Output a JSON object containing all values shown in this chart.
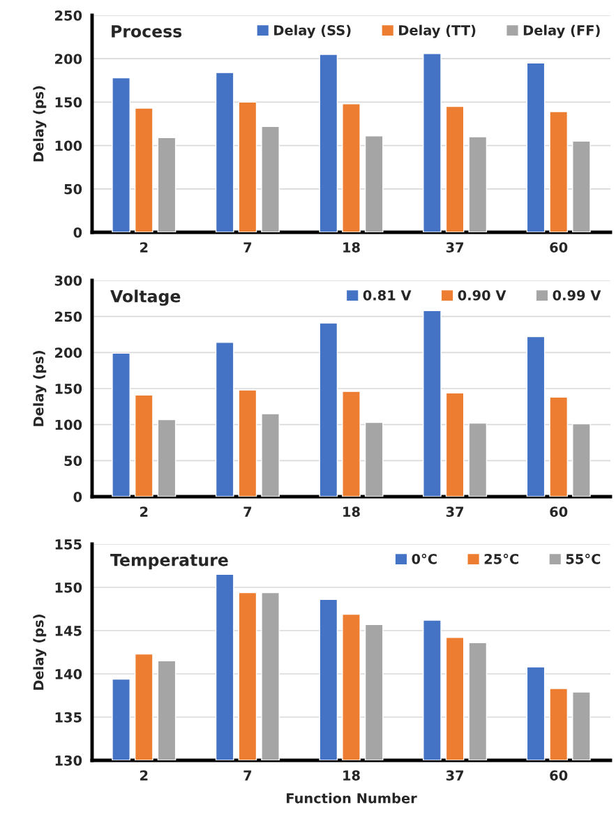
{
  "chart_data": [
    {
      "type": "bar",
      "title": "Process",
      "ylabel": "Delay (ps)",
      "categories": [
        "2",
        "7",
        "18",
        "37",
        "60"
      ],
      "ylim": [
        0,
        250
      ],
      "yticks": [
        0,
        50,
        100,
        150,
        200,
        250
      ],
      "grid": "y",
      "legend": "top right",
      "series": [
        {
          "name": "Delay (SS)",
          "color": "#4472c4",
          "values": [
            178,
            184,
            205,
            206,
            195
          ]
        },
        {
          "name": "Delay (TT)",
          "color": "#ed7d31",
          "values": [
            143,
            150,
            148,
            145,
            139
          ]
        },
        {
          "name": "Delay (FF)",
          "color": "#a5a5a5",
          "values": [
            109,
            122,
            111,
            110,
            105
          ]
        }
      ]
    },
    {
      "type": "bar",
      "title": "Voltage",
      "ylabel": "Delay (ps)",
      "categories": [
        "2",
        "7",
        "18",
        "37",
        "60"
      ],
      "ylim": [
        0,
        300
      ],
      "yticks": [
        0,
        50,
        100,
        150,
        200,
        250,
        300
      ],
      "grid": "y",
      "legend": "top right",
      "series": [
        {
          "name": "0.81 V",
          "color": "#4472c4",
          "values": [
            199,
            214,
            241,
            258,
            222
          ]
        },
        {
          "name": "0.90 V",
          "color": "#ed7d31",
          "values": [
            141,
            148,
            146,
            144,
            138
          ]
        },
        {
          "name": "0.99 V",
          "color": "#a5a5a5",
          "values": [
            107,
            115,
            103,
            102,
            101
          ]
        }
      ]
    },
    {
      "type": "bar",
      "title": "Temperature",
      "ylabel": "Delay (ps)",
      "xlabel": "Function Number",
      "categories": [
        "2",
        "7",
        "18",
        "37",
        "60"
      ],
      "ylim": [
        130,
        155
      ],
      "yticks": [
        130,
        135,
        140,
        145,
        150,
        155
      ],
      "grid": "y",
      "legend": "top right",
      "series": [
        {
          "name": "0°C",
          "color": "#4472c4",
          "values": [
            139.4,
            151.5,
            148.6,
            146.2,
            140.8
          ]
        },
        {
          "name": "25°C",
          "color": "#ed7d31",
          "values": [
            142.3,
            149.4,
            146.9,
            144.2,
            138.3
          ]
        },
        {
          "name": "55°C",
          "color": "#a5a5a5",
          "values": [
            141.5,
            149.4,
            145.7,
            143.6,
            137.9
          ]
        }
      ]
    }
  ]
}
